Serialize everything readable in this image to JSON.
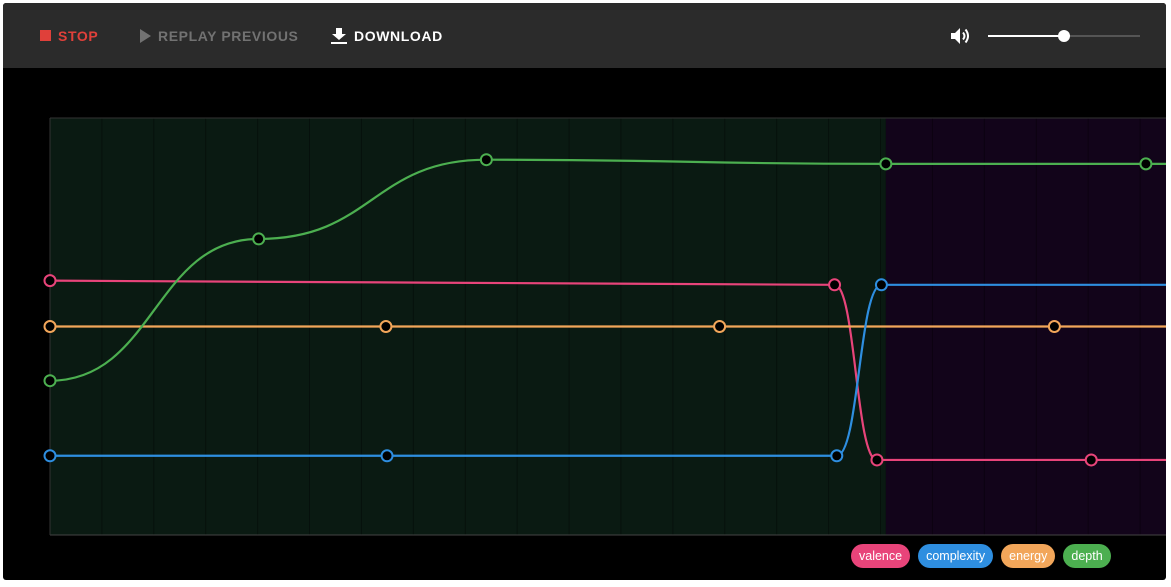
{
  "toolbar": {
    "stop_label": "STOP",
    "replay_label": "REPLAY PREVIOUS",
    "download_label": "DOWNLOAD",
    "volume_level": 0.5
  },
  "icons": {
    "stop": "stop-square-icon",
    "replay": "play-triangle-icon",
    "download": "download-arrow-icon",
    "volume": "speaker-volume-icon"
  },
  "colors": {
    "valence": "#e8447a",
    "complexity": "#2e8ee0",
    "energy": "#f2a65a",
    "depth": "#4caf50",
    "section_a_bg": "#0a1a12",
    "section_b_bg": "#12041a"
  },
  "legend": [
    {
      "label": "valence",
      "color": "#e8447a"
    },
    {
      "label": "complexity",
      "color": "#2e8ee0"
    },
    {
      "label": "energy",
      "color": "#f2a65a"
    },
    {
      "label": "depth",
      "color": "#4caf50"
    }
  ],
  "chart_data": {
    "type": "line",
    "sections": [
      {
        "x_start": 0,
        "x_end": 0.749
      },
      {
        "x_start": 0.749,
        "x_end": 1
      }
    ],
    "ylim": [
      0,
      1
    ],
    "series": [
      {
        "name": "valence",
        "points": [
          [
            0,
            0.61
          ],
          [
            0.703,
            0.6
          ],
          [
            0.741,
            0.18
          ],
          [
            0.933,
            0.18
          ],
          [
            1,
            0.18
          ]
        ]
      },
      {
        "name": "complexity",
        "points": [
          [
            0,
            0.19
          ],
          [
            0.302,
            0.19
          ],
          [
            0.705,
            0.19
          ],
          [
            0.745,
            0.6
          ],
          [
            1,
            0.6
          ]
        ]
      },
      {
        "name": "energy",
        "points": [
          [
            0,
            0.5
          ],
          [
            0.301,
            0.5
          ],
          [
            0.6,
            0.5
          ],
          [
            0.9,
            0.5
          ],
          [
            1,
            0.5
          ]
        ]
      },
      {
        "name": "depth",
        "points": [
          [
            0,
            0.37
          ],
          [
            0.187,
            0.71
          ],
          [
            0.391,
            0.9
          ],
          [
            0.749,
            0.89
          ],
          [
            0.982,
            0.89
          ],
          [
            1,
            0.89
          ]
        ]
      }
    ],
    "markers": {
      "valence": [
        0,
        0.703,
        0.741,
        0.933
      ],
      "complexity": [
        0,
        0.302,
        0.705,
        0.745
      ],
      "energy": [
        0,
        0.301,
        0.6,
        0.9
      ],
      "depth": [
        0,
        0.187,
        0.391,
        0.749,
        0.982
      ]
    }
  }
}
